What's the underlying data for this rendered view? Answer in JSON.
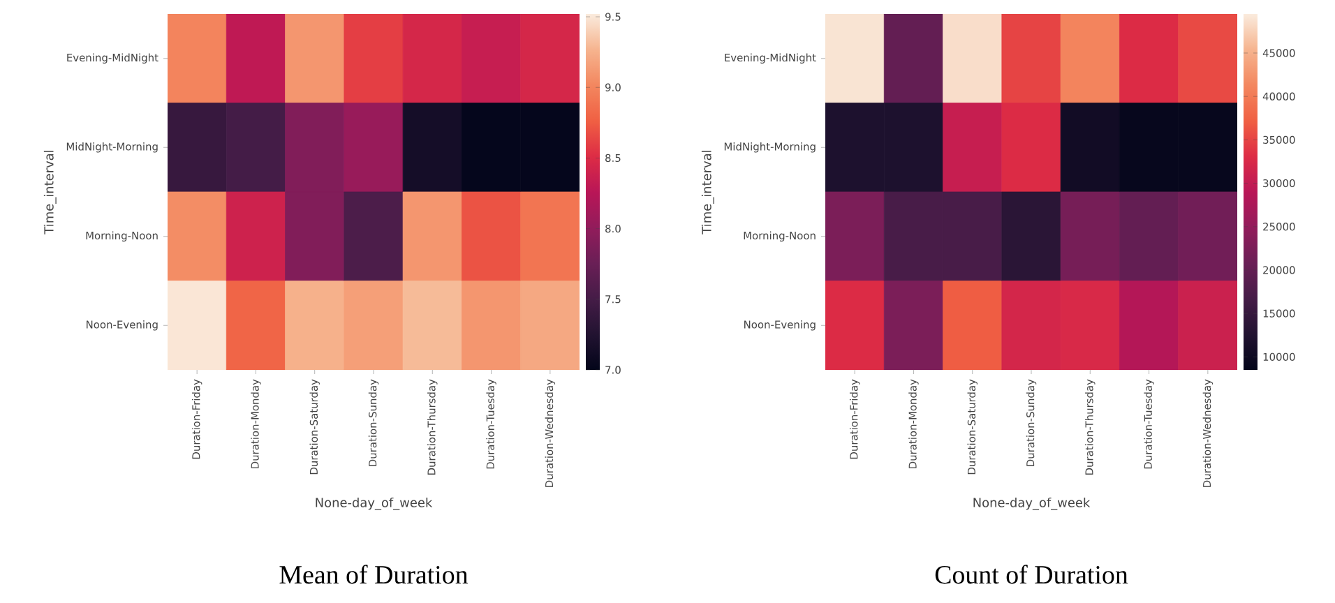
{
  "chart_data": [
    {
      "type": "heatmap",
      "title": "Mean of Duration",
      "xlabel": "None-day_of_week",
      "ylabel": "Time_interval",
      "categories": [
        "Duration-Friday",
        "Duration-Monday",
        "Duration-Saturday",
        "Duration-Sunday",
        "Duration-Thursday",
        "Duration-Tuesday",
        "Duration-Wednesday"
      ],
      "y_categories": [
        "Evening-MidNight",
        "MidNight-Morning",
        "Morning-Noon",
        "Noon-Evening"
      ],
      "cells": [
        [
          9.0,
          8.3,
          9.1,
          8.6,
          8.45,
          8.35,
          8.45
        ],
        [
          7.4,
          7.5,
          7.9,
          8.05,
          7.15,
          7.02,
          7.02
        ],
        [
          9.05,
          8.4,
          7.9,
          7.55,
          9.1,
          8.7,
          8.9
        ],
        [
          9.5,
          8.8,
          9.25,
          9.15,
          9.3,
          9.1,
          9.2
        ]
      ],
      "clim": [
        7.0,
        9.52
      ],
      "cticks": [
        {
          "value": 7.0,
          "label": "7.0"
        },
        {
          "value": 7.5,
          "label": "7.5"
        },
        {
          "value": 8.0,
          "label": "8.0"
        },
        {
          "value": 8.5,
          "label": "8.5"
        },
        {
          "value": 9.0,
          "label": "9.0"
        },
        {
          "value": 9.5,
          "label": "9.5"
        }
      ]
    },
    {
      "type": "heatmap",
      "title": "Count of Duration",
      "xlabel": "None-day_of_week",
      "ylabel": "Time_interval",
      "categories": [
        "Duration-Friday",
        "Duration-Monday",
        "Duration-Saturday",
        "Duration-Sunday",
        "Duration-Thursday",
        "Duration-Tuesday",
        "Duration-Wednesday"
      ],
      "y_categories": [
        "Evening-MidNight",
        "MidNight-Morning",
        "Morning-Noon",
        "Noon-Evening"
      ],
      "cells": [
        [
          49000,
          20000,
          48500,
          35000,
          41000,
          33000,
          35500
        ],
        [
          12000,
          12000,
          30500,
          33000,
          10500,
          9000,
          9000
        ],
        [
          22500,
          17000,
          17000,
          13500,
          22000,
          20000,
          21500
        ],
        [
          33000,
          22500,
          37000,
          32000,
          32500,
          28500,
          31000
        ]
      ],
      "clim": [
        8500,
        49500
      ],
      "cticks": [
        10000,
        15000,
        20000,
        25000,
        30000,
        35000,
        40000,
        45000
      ]
    }
  ]
}
